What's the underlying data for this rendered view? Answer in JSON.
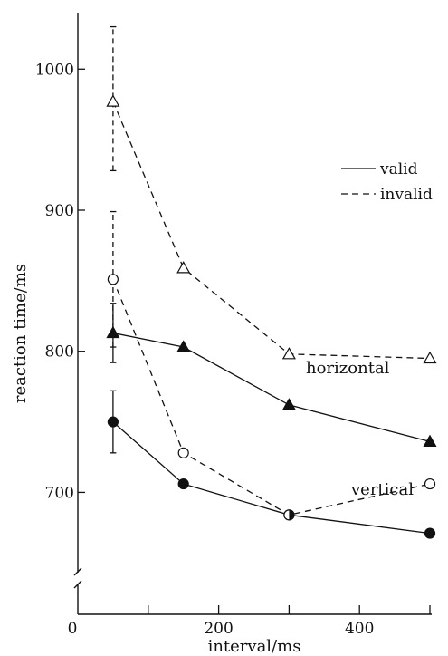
{
  "chart_data": {
    "type": "line",
    "xlabel": "interval/ms",
    "ylabel": "reaction time/ms",
    "x_origin_label": "0",
    "xlim": [
      0,
      500
    ],
    "ylim": [
      620,
      1040
    ],
    "x_ticks": [
      {
        "value": 100,
        "label": ""
      },
      {
        "value": 200,
        "label": "200"
      },
      {
        "value": 300,
        "label": ""
      },
      {
        "value": 400,
        "label": "400"
      },
      {
        "value": 500,
        "label": ""
      }
    ],
    "y_ticks": [
      {
        "value": 700,
        "label": "700"
      },
      {
        "value": 800,
        "label": "800"
      },
      {
        "value": 900,
        "label": "900"
      },
      {
        "value": 1000,
        "label": "1000"
      }
    ],
    "axis_break": true,
    "grid": false,
    "legend_position": "top-right",
    "legend": [
      {
        "label": "valid",
        "line_style": "solid"
      },
      {
        "label": "invalid",
        "line_style": "dashed"
      }
    ],
    "annotations": [
      "horizontal",
      "vertical"
    ],
    "series": [
      {
        "condition": "horizontal",
        "cue": "invalid",
        "line_style": "dashed",
        "marker": "triangle-open",
        "x": [
          50,
          150,
          300,
          500
        ],
        "y": [
          977,
          859,
          798,
          795
        ],
        "error_bars": [
          {
            "x": 50,
            "low": 928,
            "high": 1030
          }
        ]
      },
      {
        "condition": "horizontal",
        "cue": "valid",
        "line_style": "solid",
        "marker": "triangle-filled",
        "x": [
          50,
          150,
          300,
          500
        ],
        "y": [
          813,
          803,
          762,
          736
        ],
        "error_bars": [
          {
            "x": 50,
            "low": 792,
            "high": 834
          }
        ]
      },
      {
        "condition": "vertical",
        "cue": "invalid",
        "line_style": "dashed",
        "marker": "circle-open",
        "x": [
          50,
          150,
          300,
          500
        ],
        "y": [
          851,
          728,
          684,
          706
        ],
        "error_bars": [
          {
            "x": 50,
            "low": 803,
            "high": 899
          }
        ]
      },
      {
        "condition": "vertical",
        "cue": "valid",
        "line_style": "solid",
        "marker": "circle-filled",
        "x": [
          50,
          150,
          300,
          500
        ],
        "y": [
          750,
          706,
          684,
          671
        ],
        "error_bars": [
          {
            "x": 50,
            "low": 728,
            "high": 772
          }
        ]
      }
    ],
    "colors": {
      "ink": "#111111",
      "background": "#ffffff"
    }
  }
}
